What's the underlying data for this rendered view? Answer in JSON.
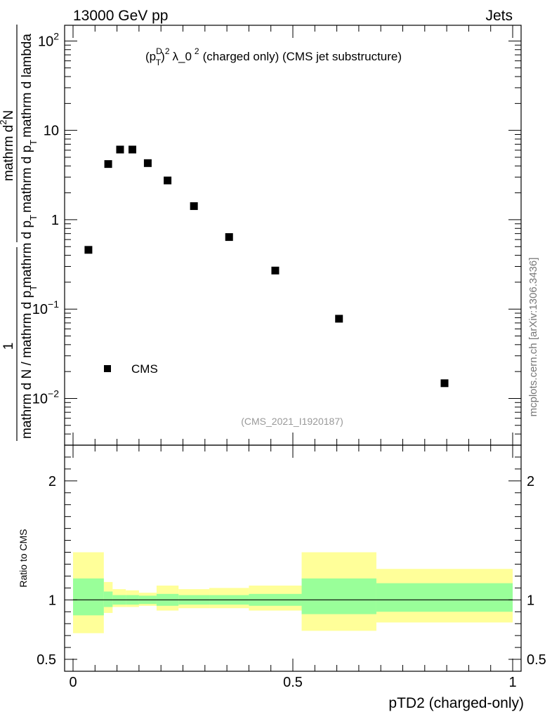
{
  "header": {
    "left": "13000 GeV pp",
    "right": "Jets"
  },
  "plot_title": {
    "p": "(p",
    "sup_d": "D",
    "sub_t": "T",
    "close": ")",
    "sup_2": "2",
    "lambda": "λ_0",
    "sup_2b": "2",
    "rest": "(charged only) (CMS jet substructure)"
  },
  "side_label": "mcplots.cern.ch [arXiv:1306.3436]",
  "analysis_id": "(CMS_2021_I1920187)",
  "legend": {
    "label": "CMS"
  },
  "y_axis": {
    "numerator": "1",
    "denominator": "mathrm d N / mathrm d p",
    "den_sub": "T",
    "frac_top": "mathrm d",
    "frac_top_sup": "2",
    "frac_top_n": "N",
    "frac_bottom_a": "mathrm d p",
    "frac_bottom_sub": "T",
    "frac_bottom_b": "mathrm d p",
    "frac_bottom_sub2": "T",
    "frac_bottom_c": "mathrm d lambda"
  },
  "ratio_ylabel": "Ratio to CMS",
  "x_axis_label": "pTD2 (charged-only)",
  "chart_data": {
    "type": "scatter",
    "title": "(pT^D)^2 λ_0^2 (charged only) (CMS jet substructure)",
    "xlabel": "pTD2 (charged-only)",
    "ylabel": "1 / (mathrm d N / mathrm d pT) · mathrm d^2N / (mathrm d pT mathrm d lambda)",
    "yscale": "log",
    "xlim": [
      0,
      1
    ],
    "ylim": [
      0.003,
      150
    ],
    "series": [
      {
        "name": "CMS",
        "x": [
          0.035,
          0.08,
          0.107,
          0.135,
          0.17,
          0.215,
          0.275,
          0.355,
          0.46,
          0.605,
          0.845
        ],
        "values": [
          0.46,
          4.2,
          6.1,
          6.1,
          4.3,
          2.75,
          1.42,
          0.64,
          0.27,
          0.078,
          0.0148
        ]
      }
    ],
    "x_ticks": [
      {
        "value": 0,
        "label": "0"
      },
      {
        "value": 0.5,
        "label": "0.5"
      },
      {
        "value": 1,
        "label": "1"
      }
    ],
    "y_ticks": [
      {
        "value": 0.01,
        "base": "10",
        "exp": "−2"
      },
      {
        "value": 0.1,
        "base": "10",
        "exp": "−1"
      },
      {
        "value": 1,
        "base": "1",
        "exp": ""
      },
      {
        "value": 10,
        "base": "10",
        "exp": ""
      },
      {
        "value": 100,
        "base": "10",
        "exp": "2"
      }
    ],
    "ratio": {
      "ylabel": "Ratio to CMS",
      "ylim": [
        0.4,
        2.3
      ],
      "y_ticks": [
        {
          "value": 0.5,
          "label": "0.5"
        },
        {
          "value": 1,
          "label": "1"
        },
        {
          "value": 2,
          "label": "2"
        }
      ],
      "bins": [
        {
          "x0": 0.0,
          "x1": 0.07,
          "stat_lo": 0.87,
          "stat_hi": 1.18,
          "tot_lo": 0.72,
          "tot_hi": 1.4
        },
        {
          "x0": 0.07,
          "x1": 0.09,
          "stat_lo": 0.94,
          "stat_hi": 1.07,
          "tot_lo": 0.89,
          "tot_hi": 1.15
        },
        {
          "x0": 0.09,
          "x1": 0.12,
          "stat_lo": 0.96,
          "stat_hi": 1.04,
          "tot_lo": 0.94,
          "tot_hi": 1.09
        },
        {
          "x0": 0.12,
          "x1": 0.15,
          "stat_lo": 0.96,
          "stat_hi": 1.04,
          "tot_lo": 0.94,
          "tot_hi": 1.08
        },
        {
          "x0": 0.15,
          "x1": 0.19,
          "stat_lo": 0.965,
          "stat_hi": 1.035,
          "tot_lo": 0.95,
          "tot_hi": 1.06
        },
        {
          "x0": 0.19,
          "x1": 0.24,
          "stat_lo": 0.95,
          "stat_hi": 1.05,
          "tot_lo": 0.91,
          "tot_hi": 1.12
        },
        {
          "x0": 0.24,
          "x1": 0.31,
          "stat_lo": 0.96,
          "stat_hi": 1.04,
          "tot_lo": 0.93,
          "tot_hi": 1.09
        },
        {
          "x0": 0.31,
          "x1": 0.4,
          "stat_lo": 0.96,
          "stat_hi": 1.04,
          "tot_lo": 0.93,
          "tot_hi": 1.1
        },
        {
          "x0": 0.4,
          "x1": 0.52,
          "stat_lo": 0.95,
          "stat_hi": 1.05,
          "tot_lo": 0.91,
          "tot_hi": 1.12
        },
        {
          "x0": 0.52,
          "x1": 0.69,
          "stat_lo": 0.88,
          "stat_hi": 1.18,
          "tot_lo": 0.74,
          "tot_hi": 1.4
        },
        {
          "x0": 0.69,
          "x1": 1.0,
          "stat_lo": 0.9,
          "stat_hi": 1.14,
          "tot_lo": 0.81,
          "tot_hi": 1.26
        }
      ]
    }
  }
}
